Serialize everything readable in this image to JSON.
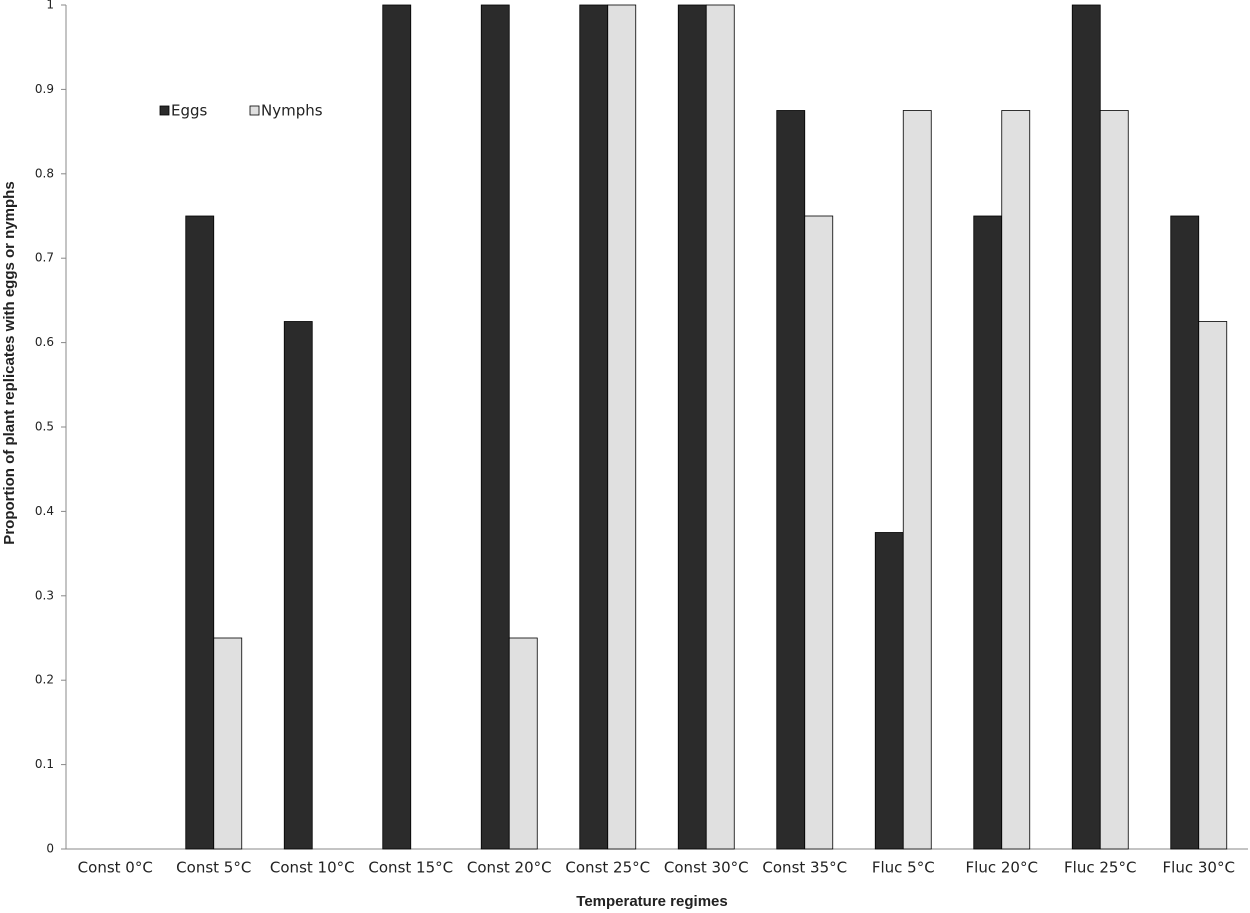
{
  "chart_data": {
    "type": "bar",
    "x_label": "Temperature  regimes",
    "y_label": "Proportion of plant replicates with eggs or nymphs",
    "categories": [
      "Const 0°C",
      "Const 5°C",
      "Const 10°C",
      "Const 15°C",
      "Const 20°C",
      "Const 25°C",
      "Const 30°C",
      "Const 35°C",
      "Fluc 5°C",
      "Fluc 20°C",
      "Fluc 25°C",
      "Fluc 30°C"
    ],
    "series": [
      {
        "name": "Eggs",
        "color": "#2b2b2b",
        "values": [
          0,
          0.75,
          0.625,
          1,
          1,
          1,
          1,
          0.875,
          0.375,
          0.75,
          1,
          0.75
        ]
      },
      {
        "name": "Nymphs",
        "color": "#e0e0e0",
        "values": [
          0,
          0.25,
          0,
          0,
          0.25,
          1,
          1,
          0.75,
          0.875,
          0.875,
          0.875,
          0.625
        ]
      }
    ],
    "ylim": [
      0,
      1
    ],
    "yticks": [
      0,
      0.1,
      0.2,
      0.3,
      0.4,
      0.5,
      0.6,
      0.7,
      0.8,
      0.9,
      1
    ],
    "grid": false,
    "legend": "top-left"
  }
}
